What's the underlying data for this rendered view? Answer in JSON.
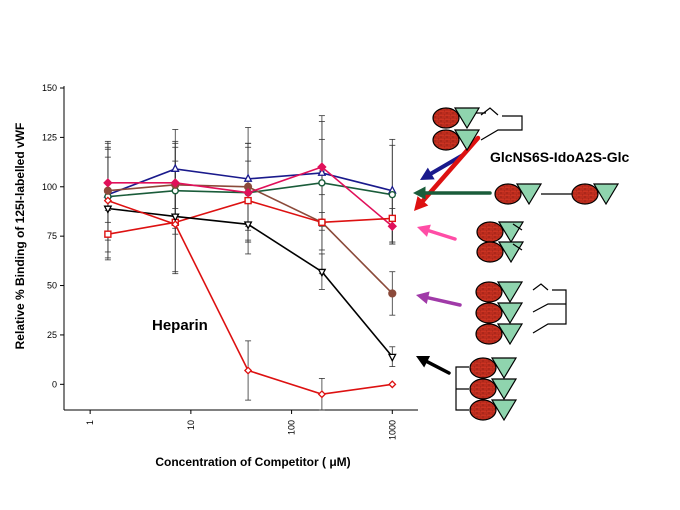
{
  "chart_data": {
    "type": "line",
    "xlabel": "Concentration of Competitor ( μM)",
    "ylabel": "Relative % Binding of 125I-labelled vWF",
    "xscale": "log",
    "xlim": [
      0.55,
      1800
    ],
    "ylim": [
      -13,
      150
    ],
    "xticks": [
      1,
      10,
      100,
      1000
    ],
    "xtick_labels": [
      "1",
      "10",
      "100",
      "1000"
    ],
    "yticks": [
      0,
      25,
      50,
      75,
      100,
      125,
      150
    ],
    "ytick_labels": [
      "0",
      "25",
      "50",
      "75",
      "100",
      "125",
      "150"
    ],
    "grid": false,
    "series": [
      {
        "color": "#1a1a8c",
        "marker": "triangle-up",
        "x": [
          1.5,
          7,
          37,
          200,
          1000
        ],
        "y": [
          96,
          109,
          104,
          107,
          98
        ],
        "err": [
          23,
          20,
          26,
          29,
          26
        ]
      },
      {
        "color": "#1a5c3a",
        "marker": "circle-open",
        "x": [
          1.5,
          7,
          37,
          200,
          1000
        ],
        "y": [
          95,
          98,
          97,
          102,
          96
        ],
        "err": [
          28,
          22,
          25,
          22,
          25
        ]
      },
      {
        "color": "#8b4a3a",
        "marker": "circle-filled",
        "x": [
          1.5,
          7,
          37,
          200,
          1000
        ],
        "y": [
          98,
          101,
          100,
          82,
          46
        ],
        "err": [
          22,
          22,
          20,
          26,
          11
        ]
      },
      {
        "color": "#e0105a",
        "marker": "diamond-filled",
        "x": [
          1.5,
          7,
          37,
          200,
          1000
        ],
        "y": [
          102,
          102,
          97,
          110,
          80
        ],
        "err": [
          20,
          20,
          25,
          23,
          9
        ]
      },
      {
        "color": "#dd1111",
        "marker": "square-open",
        "x": [
          1.5,
          7,
          37,
          200,
          1000
        ],
        "y": [
          76,
          82,
          93,
          82,
          84
        ],
        "err": [
          12,
          26,
          20,
          14,
          12
        ]
      },
      {
        "color": "#000000",
        "marker": "triangle-down",
        "x": [
          1.5,
          7,
          37,
          200,
          1000
        ],
        "y": [
          89,
          85,
          81,
          57,
          14
        ],
        "err": [
          26,
          28,
          15,
          9,
          5
        ]
      },
      {
        "name": "Heparin",
        "color": "#dd1111",
        "marker": "diamond-open",
        "x": [
          1.5,
          7,
          37,
          200,
          1000
        ],
        "y": [
          93,
          81,
          7,
          -5,
          0
        ],
        "err": [
          0,
          0,
          15,
          8,
          0
        ]
      }
    ],
    "annotations": {
      "heparin_label": "Heparin",
      "structure_label": "GlcNS6S-IdoA2S-Glc"
    }
  },
  "colors": {
    "ring_fill": "#cc3322",
    "triangle_fill": "#8fd4ae"
  },
  "icons": [
    "branched-trimer-icon",
    "glcns6s-idoa2s-glc-icon",
    "dimer-icon",
    "tetramer-icon",
    "trimer-icon"
  ]
}
